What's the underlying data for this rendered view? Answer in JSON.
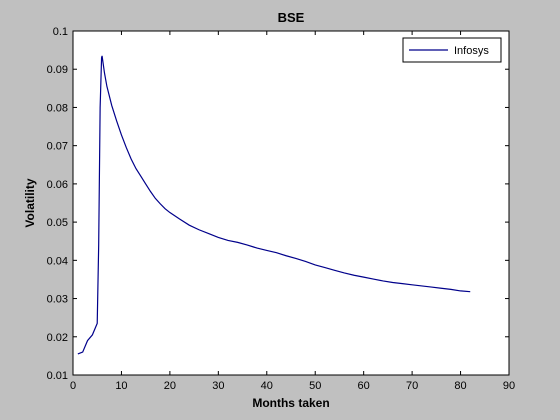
{
  "chart_data": {
    "type": "line",
    "title": "BSE",
    "xlabel": "Months taken",
    "ylabel": "Volatility",
    "xlim": [
      0,
      90
    ],
    "ylim": [
      0.01,
      0.1
    ],
    "xticks": [
      "0",
      "10",
      "20",
      "30",
      "40",
      "50",
      "60",
      "70",
      "80",
      "90"
    ],
    "yticks": [
      "0.01",
      "0.02",
      "0.03",
      "0.04",
      "0.05",
      "0.06",
      "0.07",
      "0.08",
      "0.09",
      "0.1"
    ],
    "grid": false,
    "legend_position": "top-right",
    "series": [
      {
        "name": "Infosys",
        "color": "#00008b",
        "x": [
          1,
          2,
          3,
          4,
          5,
          5.3,
          5.6,
          5.9,
          6,
          6.5,
          7,
          8,
          9,
          10,
          11,
          12,
          13,
          14,
          15,
          16,
          17,
          18,
          19,
          20,
          22,
          24,
          26,
          28,
          30,
          32,
          34,
          36,
          38,
          40,
          42,
          44,
          46,
          48,
          50,
          52,
          54,
          56,
          58,
          60,
          62,
          64,
          66,
          68,
          70,
          72,
          74,
          76,
          78,
          80,
          82
        ],
        "y": [
          0.0155,
          0.016,
          0.019,
          0.0205,
          0.0235,
          0.044,
          0.08,
          0.093,
          0.0935,
          0.089,
          0.0855,
          0.0805,
          0.0765,
          0.0728,
          0.0695,
          0.0665,
          0.064,
          0.062,
          0.06,
          0.058,
          0.0562,
          0.0548,
          0.0535,
          0.0525,
          0.0508,
          0.0492,
          0.048,
          0.047,
          0.046,
          0.0452,
          0.0447,
          0.044,
          0.0432,
          0.0426,
          0.042,
          0.0412,
          0.0405,
          0.0397,
          0.0388,
          0.0381,
          0.0374,
          0.0367,
          0.0361,
          0.0356,
          0.0351,
          0.0346,
          0.0342,
          0.0339,
          0.0336,
          0.0333,
          0.033,
          0.0327,
          0.0324,
          0.032,
          0.0318
        ]
      }
    ]
  }
}
